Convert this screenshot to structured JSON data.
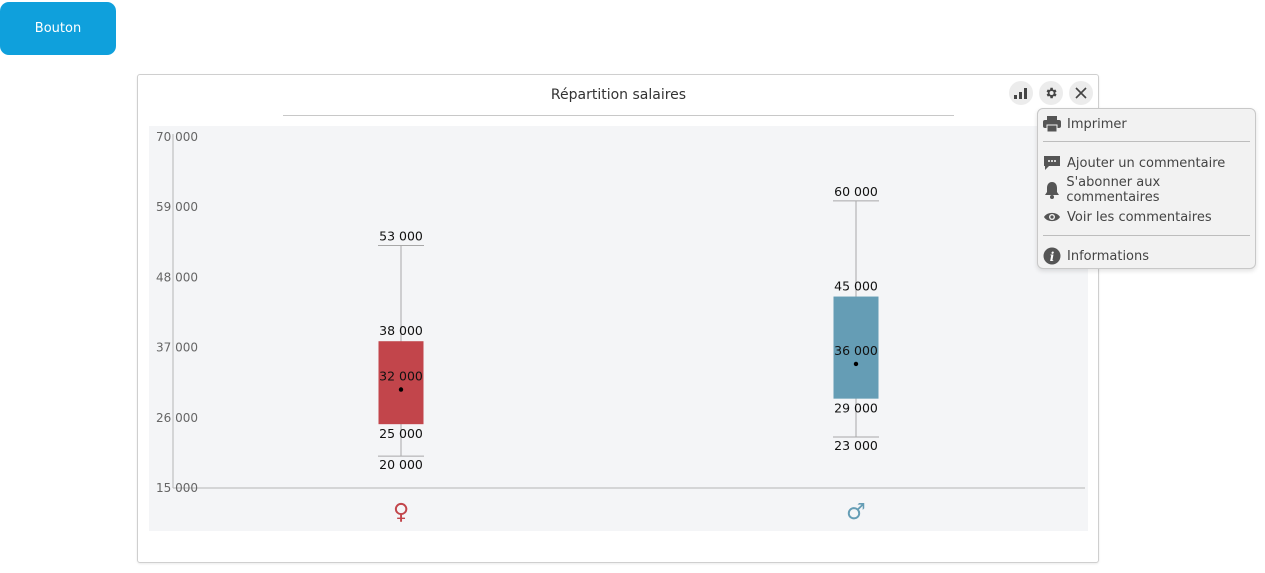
{
  "top_button": {
    "label": "Bouton"
  },
  "panel": {
    "title": "Répartition salaires",
    "tools": [
      {
        "icon": "signal-bars-icon"
      },
      {
        "icon": "gear-icon"
      },
      {
        "icon": "close-icon"
      }
    ]
  },
  "menu": {
    "items": [
      {
        "label": "Imprimer",
        "icon": "printer-icon"
      },
      {
        "label": "Ajouter un commentaire",
        "icon": "comment-icon"
      },
      {
        "label": "S'abonner aux commentaires",
        "icon": "bell-icon"
      },
      {
        "label": "Voir les commentaires",
        "icon": "eye-icon"
      },
      {
        "label": "Informations",
        "icon": "info-icon"
      }
    ]
  },
  "chart_data": {
    "type": "boxplot",
    "y_ticks": [
      {
        "value": 15000,
        "label": "15 000"
      },
      {
        "value": 26000,
        "label": "26 000"
      },
      {
        "value": 37000,
        "label": "37 000"
      },
      {
        "value": 48000,
        "label": "48 000"
      },
      {
        "value": 59000,
        "label": "59 000"
      },
      {
        "value": 70000,
        "label": "70 000"
      }
    ],
    "ylim": [
      15000,
      70000
    ],
    "categories": [
      "♀",
      "♂"
    ],
    "colors": [
      "#c2454b",
      "#659db5"
    ],
    "boxes": [
      {
        "category": "♀",
        "min": 20000,
        "q1": 25000,
        "median": 32000,
        "q3": 38000,
        "max": 53000,
        "labels": {
          "min": "20 000",
          "q1": "25 000",
          "median": "32 000",
          "q3": "38 000",
          "max": "53 000"
        }
      },
      {
        "category": "♂",
        "min": 23000,
        "q1": 29000,
        "median": 36000,
        "q3": 45000,
        "max": 60000,
        "labels": {
          "min": "23 000",
          "q1": "29 000",
          "median": "36 000",
          "q3": "45 000",
          "max": "60 000"
        }
      }
    ]
  }
}
